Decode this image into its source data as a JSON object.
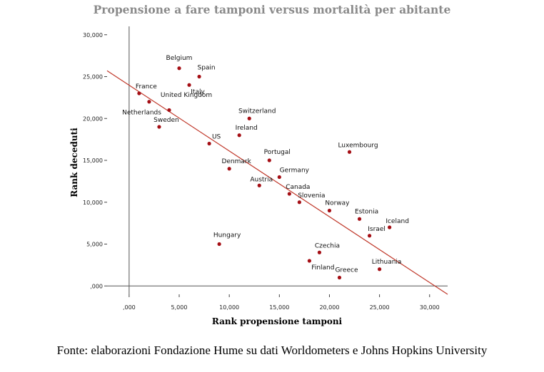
{
  "chart_data": {
    "type": "scatter",
    "title": "Propensione a fare tamponi versus mortalità per abitante",
    "xlabel": "Rank propensione tamponi",
    "ylabel": "Rank deceduti",
    "xlim": [
      -2200,
      31800
    ],
    "ylim": [
      -1000,
      31000
    ],
    "x_ticks": [
      0,
      5000,
      10000,
      15000,
      20000,
      25000,
      30000
    ],
    "x_tick_labels": [
      ",000",
      "5,000",
      "10,000",
      "15,000",
      "20,000",
      "25,000",
      "30,000"
    ],
    "y_ticks": [
      0,
      5000,
      10000,
      15000,
      20000,
      25000,
      30000
    ],
    "y_tick_labels": [
      ",000",
      "5,000",
      "10,000",
      "15,000",
      "20,000",
      "25,000",
      "30,000"
    ],
    "reference_lines": {
      "x": 0,
      "y": 0
    },
    "fit_line": {
      "x": [
        -2200,
        31800
      ],
      "y": [
        25700,
        -1000
      ]
    },
    "point_color": "#a50f15",
    "line_color": "#c0392b",
    "grid": false,
    "points": [
      {
        "label": "Belgium",
        "x": 5000,
        "y": 26000
      },
      {
        "label": "Spain",
        "x": 7000,
        "y": 25000
      },
      {
        "label": "Italy",
        "x": 6000,
        "y": 24000
      },
      {
        "label": "France",
        "x": 1000,
        "y": 23000
      },
      {
        "label": "United Kingdom",
        "x": 2000,
        "y": 22000
      },
      {
        "label": "Netherlands",
        "x": 4000,
        "y": 21000
      },
      {
        "label": "Sweden",
        "x": 3000,
        "y": 19000
      },
      {
        "label": "Switzerland",
        "x": 12000,
        "y": 20000
      },
      {
        "label": "Ireland",
        "x": 11000,
        "y": 18000
      },
      {
        "label": "US",
        "x": 8000,
        "y": 17000
      },
      {
        "label": "Luxembourg",
        "x": 22000,
        "y": 16000
      },
      {
        "label": "Portugal",
        "x": 14000,
        "y": 15000
      },
      {
        "label": "Denmark",
        "x": 10000,
        "y": 14000
      },
      {
        "label": "Germany",
        "x": 15000,
        "y": 13000
      },
      {
        "label": "Austria",
        "x": 13000,
        "y": 12000
      },
      {
        "label": "Canada",
        "x": 16000,
        "y": 11000
      },
      {
        "label": "Slovenia",
        "x": 17000,
        "y": 10000
      },
      {
        "label": "Norway",
        "x": 20000,
        "y": 9000
      },
      {
        "label": "Estonia",
        "x": 23000,
        "y": 8000
      },
      {
        "label": "Iceland",
        "x": 26000,
        "y": 7000
      },
      {
        "label": "Israel",
        "x": 24000,
        "y": 6000
      },
      {
        "label": "Hungary",
        "x": 9000,
        "y": 5000
      },
      {
        "label": "Czechia",
        "x": 19000,
        "y": 4000
      },
      {
        "label": "Finland",
        "x": 18000,
        "y": 3000
      },
      {
        "label": "Lithuania",
        "x": 25000,
        "y": 2000
      },
      {
        "label": "Greece",
        "x": 21000,
        "y": 1000
      }
    ]
  },
  "source": "Fonte: elaborazioni Fondazione Hume su dati Worldometers e Johns Hopkins University"
}
